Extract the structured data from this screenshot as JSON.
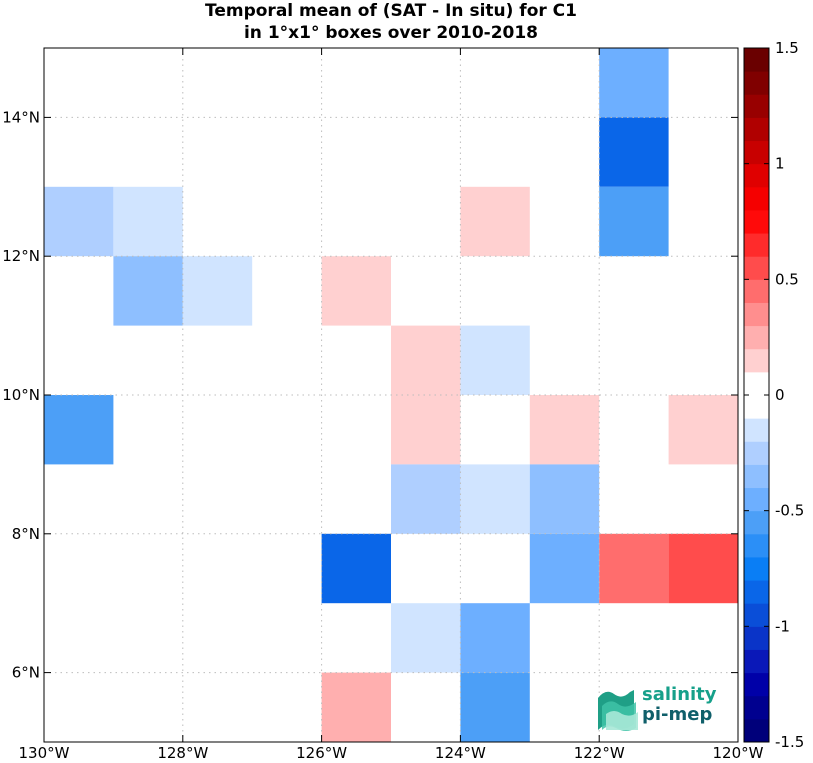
{
  "title_line1": "Temporal mean of (SAT - In situ) for C1",
  "title_line2": "in 1°x1° boxes over 2010-2018",
  "logo": {
    "line1": "salinity",
    "line2": "pi-mep"
  },
  "chart_data": {
    "type": "heatmap",
    "x_range": [
      -130,
      -120
    ],
    "y_range": [
      5,
      15
    ],
    "x_ticks": [
      {
        "value": -130,
        "label": "130°W"
      },
      {
        "value": -128,
        "label": "128°W"
      },
      {
        "value": -126,
        "label": "126°W"
      },
      {
        "value": -124,
        "label": "124°W"
      },
      {
        "value": -122,
        "label": "122°W"
      },
      {
        "value": -120,
        "label": "120°W"
      }
    ],
    "y_ticks": [
      {
        "value": 6,
        "label": "6°N"
      },
      {
        "value": 8,
        "label": "8°N"
      },
      {
        "value": 10,
        "label": "10°N"
      },
      {
        "value": 12,
        "label": "12°N"
      },
      {
        "value": 14,
        "label": "14°N"
      }
    ],
    "grid": true,
    "colorbar": {
      "range": [
        -1.5,
        1.5
      ],
      "ticks": [
        1.5,
        1,
        0.5,
        0,
        -0.5,
        -1,
        -1.5
      ],
      "tick_labels": [
        "1.5",
        "1",
        "0.5",
        "0",
        "-0.5",
        "-1",
        "-1.5"
      ],
      "colors": [
        "#00007a",
        "#00008f",
        "#0000a8",
        "#0a18b8",
        "#0a34c8",
        "#0a4ed8",
        "#0a66e8",
        "#0a7ef5",
        "#2b8ff7",
        "#4c9ff7",
        "#6dafff",
        "#8ebfff",
        "#afcfff",
        "#d0e4ff",
        "#ffffff",
        "#ffffff",
        "#ffd0d0",
        "#ffafaf",
        "#ff8e8e",
        "#ff6d6d",
        "#ff4c4c",
        "#ff2b2b",
        "#ff0a0a",
        "#f50000",
        "#e00000",
        "#c80000",
        "#b00000",
        "#980000",
        "#800000",
        "#6a0000"
      ]
    },
    "cells": [
      {
        "lon": -122,
        "lat": 14,
        "value": -0.5
      },
      {
        "lon": -122,
        "lat": 13,
        "value": -0.8
      },
      {
        "lon": -122,
        "lat": 12,
        "value": -0.6
      },
      {
        "lon": -130,
        "lat": 12,
        "value": -0.25
      },
      {
        "lon": -129,
        "lat": 12,
        "value": -0.15
      },
      {
        "lon": -124,
        "lat": 12,
        "value": 0.15
      },
      {
        "lon": -129,
        "lat": 11,
        "value": -0.35
      },
      {
        "lon": -128,
        "lat": 11,
        "value": -0.15
      },
      {
        "lon": -126,
        "lat": 11,
        "value": 0.15
      },
      {
        "lon": -125,
        "lat": 10,
        "value": 0.15
      },
      {
        "lon": -124,
        "lat": 10,
        "value": -0.15
      },
      {
        "lon": -130,
        "lat": 9,
        "value": -0.55
      },
      {
        "lon": -125,
        "lat": 9,
        "value": 0.15
      },
      {
        "lon": -123,
        "lat": 9,
        "value": 0.15
      },
      {
        "lon": -121,
        "lat": 9,
        "value": 0.15
      },
      {
        "lon": -125,
        "lat": 8,
        "value": -0.25
      },
      {
        "lon": -124,
        "lat": 8,
        "value": -0.15
      },
      {
        "lon": -123,
        "lat": 8,
        "value": -0.35
      },
      {
        "lon": -126,
        "lat": 7,
        "value": -0.85
      },
      {
        "lon": -123,
        "lat": 7,
        "value": -0.45
      },
      {
        "lon": -122,
        "lat": 7,
        "value": 0.4
      },
      {
        "lon": -121,
        "lat": 7,
        "value": 0.55
      },
      {
        "lon": -125,
        "lat": 6,
        "value": -0.15
      },
      {
        "lon": -124,
        "lat": 6,
        "value": -0.5
      },
      {
        "lon": -126,
        "lat": 5,
        "value": 0.25
      },
      {
        "lon": -124,
        "lat": 5,
        "value": -0.6
      }
    ]
  }
}
